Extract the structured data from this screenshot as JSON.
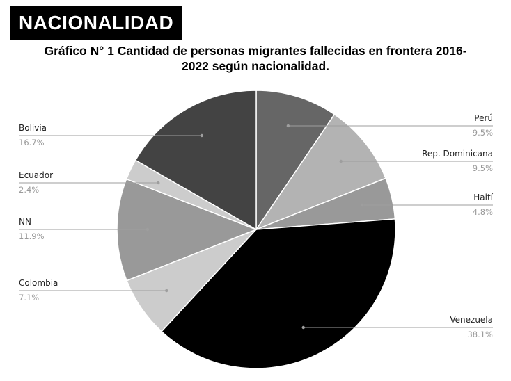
{
  "header": {
    "badge": "NACIONALIDAD"
  },
  "chart_data": {
    "type": "pie",
    "title_line1": "Gráfico N° 1 Cantidad de personas migrantes fallecidas en frontera 2016-",
    "title_line2": "2022 según nacionalidad.",
    "start_angle_deg": 0,
    "direction": "clockwise",
    "legend": "labels-with-leader-lines",
    "slices": [
      {
        "label": "Perú",
        "value": 9.5,
        "display": "9.5%",
        "color": "#666666",
        "side": "right"
      },
      {
        "label": "Rep. Dominicana",
        "value": 9.5,
        "display": "9.5%",
        "color": "#b3b3b3",
        "side": "right"
      },
      {
        "label": "Haití",
        "value": 4.8,
        "display": "4.8%",
        "color": "#999999",
        "side": "right"
      },
      {
        "label": "Venezuela",
        "value": 38.1,
        "display": "38.1%",
        "color": "#000000",
        "side": "right"
      },
      {
        "label": "Colombia",
        "value": 7.1,
        "display": "7.1%",
        "color": "#cccccc",
        "side": "left"
      },
      {
        "label": "NN",
        "value": 11.9,
        "display": "11.9%",
        "color": "#999999",
        "side": "left"
      },
      {
        "label": "Ecuador",
        "value": 2.4,
        "display": "2.4%",
        "color": "#cccccc",
        "side": "left"
      },
      {
        "label": "Bolivia",
        "value": 16.7,
        "display": "16.7%",
        "color": "#434343",
        "side": "left"
      }
    ]
  }
}
